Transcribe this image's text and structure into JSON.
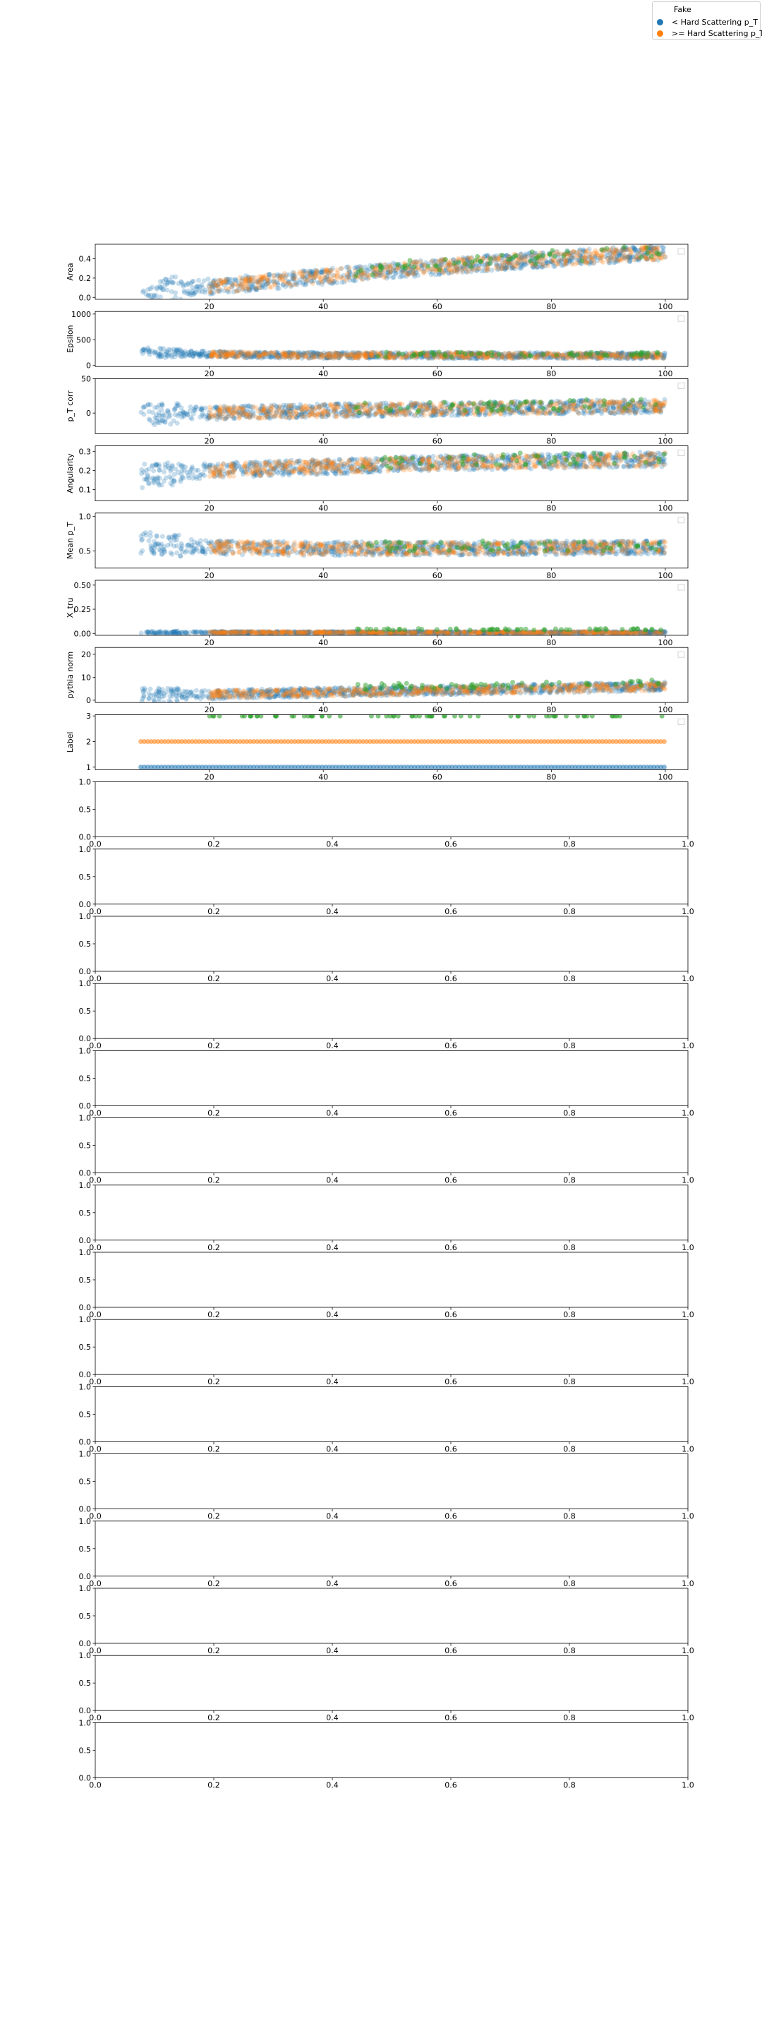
{
  "legend": {
    "title": "Fake",
    "entries": [
      {
        "label": "< Hard Scattering p_T",
        "color": "#1f77b4"
      },
      {
        "label": ">= Hard Scattering p_T",
        "color": "#ff7f0e"
      }
    ],
    "extra_series_color": "#2ca02c",
    "placement": "top-right"
  },
  "chart_data": [
    {
      "type": "scatter",
      "ylabel": "Area",
      "xlim": [
        0,
        100
      ],
      "ylim": [
        -0.02,
        0.55
      ],
      "xticks": [
        20,
        40,
        60,
        80,
        100
      ],
      "yticks": [
        0.0,
        0.2,
        0.4
      ],
      "yticklabels": [
        "0.0",
        "0.2",
        "0.4"
      ],
      "trend": {
        "x": [
          8,
          30,
          50,
          70,
          100
        ],
        "y": [
          0.06,
          0.16,
          0.27,
          0.36,
          0.47
        ]
      },
      "spread": 0.08,
      "grid": false
    },
    {
      "type": "scatter",
      "ylabel": "Epsilon",
      "xlim": [
        0,
        100
      ],
      "ylim": [
        -20,
        1050
      ],
      "xticks": [
        20,
        40,
        60,
        80,
        100
      ],
      "yticks": [
        0,
        500,
        1000
      ],
      "yticklabels": [
        "0",
        "500",
        "1000"
      ],
      "trend": {
        "x": [
          8,
          15,
          30,
          100
        ],
        "y": [
          280,
          230,
          200,
          190
        ]
      },
      "spread": 60,
      "grid": false
    },
    {
      "type": "scatter",
      "ylabel": "p_T corr",
      "xlim": [
        0,
        100
      ],
      "ylim": [
        -30,
        50
      ],
      "xticks": [
        20,
        40,
        60,
        80,
        100
      ],
      "yticks": [
        0,
        50
      ],
      "yticklabels": [
        "0",
        "50"
      ],
      "trend": {
        "x": [
          8,
          50,
          100
        ],
        "y": [
          -2,
          5,
          10
        ]
      },
      "spread": 10,
      "grid": false
    },
    {
      "type": "scatter",
      "ylabel": "Angularity",
      "xlim": [
        0,
        100
      ],
      "ylim": [
        0.04,
        0.33
      ],
      "xticks": [
        20,
        40,
        60,
        80,
        100
      ],
      "yticks": [
        0.1,
        0.2,
        0.3
      ],
      "yticklabels": [
        "0.1",
        "0.2",
        "0.3"
      ],
      "trend": {
        "x": [
          8,
          20,
          40,
          60,
          100
        ],
        "y": [
          0.17,
          0.2,
          0.22,
          0.24,
          0.26
        ]
      },
      "spread": 0.04,
      "grid": false
    },
    {
      "type": "scatter",
      "ylabel": "Mean p_T",
      "xlim": [
        0,
        100
      ],
      "ylim": [
        0.25,
        1.05
      ],
      "xticks": [
        20,
        40,
        60,
        80,
        100
      ],
      "yticks": [
        0.5,
        1.0
      ],
      "yticklabels": [
        "0.5",
        "1.0"
      ],
      "trend": {
        "x": [
          8,
          20,
          40,
          100
        ],
        "y": [
          0.62,
          0.55,
          0.53,
          0.55
        ]
      },
      "spread": 0.1,
      "grid": false
    },
    {
      "type": "scatter",
      "ylabel": "X_tru",
      "xlim": [
        0,
        100
      ],
      "ylim": [
        -0.02,
        0.55
      ],
      "xticks": [
        20,
        40,
        60,
        80,
        100
      ],
      "yticks": [
        0.0,
        0.25,
        0.5
      ],
      "yticklabels": [
        "0.00",
        "0.25",
        "0.50"
      ],
      "trend": {
        "x": [
          8,
          100
        ],
        "y": [
          0.01,
          0.01
        ]
      },
      "spread": 0.01,
      "grid": false
    },
    {
      "type": "scatter",
      "ylabel": "pythia norm",
      "xlim": [
        0,
        100
      ],
      "ylim": [
        -1,
        23
      ],
      "xticks": [
        20,
        40,
        60,
        80,
        100
      ],
      "yticks": [
        0,
        10,
        20
      ],
      "yticklabels": [
        "0",
        "10",
        "20"
      ],
      "trend": {
        "x": [
          8,
          100
        ],
        "y": [
          2,
          6
        ]
      },
      "spread": 2,
      "grid": false
    },
    {
      "type": "scatter",
      "ylabel": "Label",
      "xlim": [
        0,
        100
      ],
      "ylim": [
        0.9,
        3.05
      ],
      "xticks": [
        20,
        40,
        60,
        80,
        100
      ],
      "yticks": [
        1,
        2,
        3
      ],
      "yticklabels": [
        "1",
        "2",
        "3"
      ],
      "levels": [
        1,
        2,
        3
      ],
      "grid": false
    }
  ],
  "empty_axes": {
    "count": 15,
    "xticklabels": [
      "0.0",
      "0.2",
      "0.4",
      "0.6",
      "0.8",
      "1.0"
    ],
    "yticklabels": [
      "0.0",
      "0.5",
      "1.0"
    ]
  }
}
